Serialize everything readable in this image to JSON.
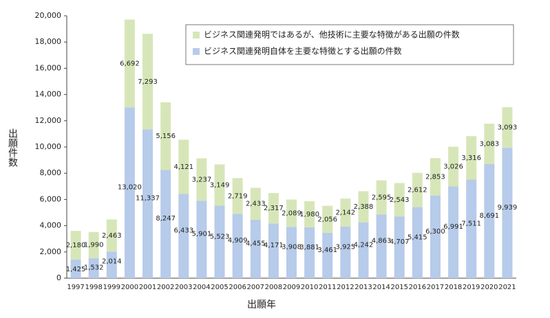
{
  "chart_data": {
    "type": "stacked_bar",
    "xlabel": "出願年",
    "ylabel": "出願件数",
    "categories": [
      "1997",
      "1998",
      "1999",
      "2000",
      "2001",
      "2002",
      "2003",
      "2004",
      "2005",
      "2006",
      "2007",
      "2008",
      "2009",
      "2010",
      "2011",
      "2012",
      "2013",
      "2014",
      "2015",
      "2016",
      "2017",
      "2018",
      "2019",
      "2020",
      "2021"
    ],
    "series": [
      {
        "name": "ビジネス関連発明自体を主要な特徴とする出願の件数",
        "color": "#b7cbea",
        "values": [
          1425,
          1532,
          2014,
          13020,
          11337,
          8247,
          6433,
          5901,
          5523,
          4909,
          4455,
          4171,
          3908,
          3881,
          3461,
          3925,
          4242,
          4863,
          4707,
          5415,
          6300,
          6991,
          7511,
          8691,
          9939
        ],
        "value_labels": [
          "1,425",
          "1,532",
          "2,014",
          "13,020",
          "11,337",
          "8,247",
          "6,433",
          "5,901",
          "5,523",
          "4,909",
          "4,455",
          "4,171",
          "3,908",
          "3,881",
          "3,461",
          "3,925",
          "4,242",
          "4,863",
          "4,707",
          "5,415",
          "6,300",
          "6,991",
          "7,511",
          "8,691",
          "9,939"
        ]
      },
      {
        "name": "ビジネス関連発明ではあるが、他技術に主要な特徴がある出願の件数",
        "color": "#d7e6b8",
        "values": [
          2180,
          1990,
          2463,
          6692,
          7293,
          5156,
          4121,
          3237,
          3149,
          2719,
          2433,
          2317,
          2089,
          1980,
          2056,
          2142,
          2388,
          2595,
          2543,
          2612,
          2853,
          3026,
          3316,
          3083,
          3093
        ],
        "value_labels": [
          "2,180",
          "1,990",
          "2,463",
          "6,692",
          "7,293",
          "5,156",
          "4,121",
          "3,237",
          "3,149",
          "2,719",
          "2,433",
          "2,317",
          "2,089",
          "1,980",
          "2,056",
          "2,142",
          "2,388",
          "2,595",
          "2,543",
          "2,612",
          "2,853",
          "3,026",
          "3,316",
          "3,083",
          "3,093"
        ]
      }
    ],
    "ylim": [
      0,
      20000
    ],
    "yticks": [
      0,
      {
        "value": 2000,
        "label": "2,000"
      },
      {
        "value": 4000,
        "label": "4,000"
      },
      {
        "value": 6000,
        "label": "6,000"
      },
      {
        "value": 8000,
        "label": "8,000"
      },
      {
        "value": 10000,
        "label": "10,000"
      },
      {
        "value": 12000,
        "label": "12,000"
      },
      {
        "value": 14000,
        "label": "14,000"
      },
      {
        "value": 16000,
        "label": "16,000"
      },
      {
        "value": 18000,
        "label": "18,000"
      },
      {
        "value": 20000,
        "label": "20,000"
      }
    ],
    "legend": "top-right"
  }
}
